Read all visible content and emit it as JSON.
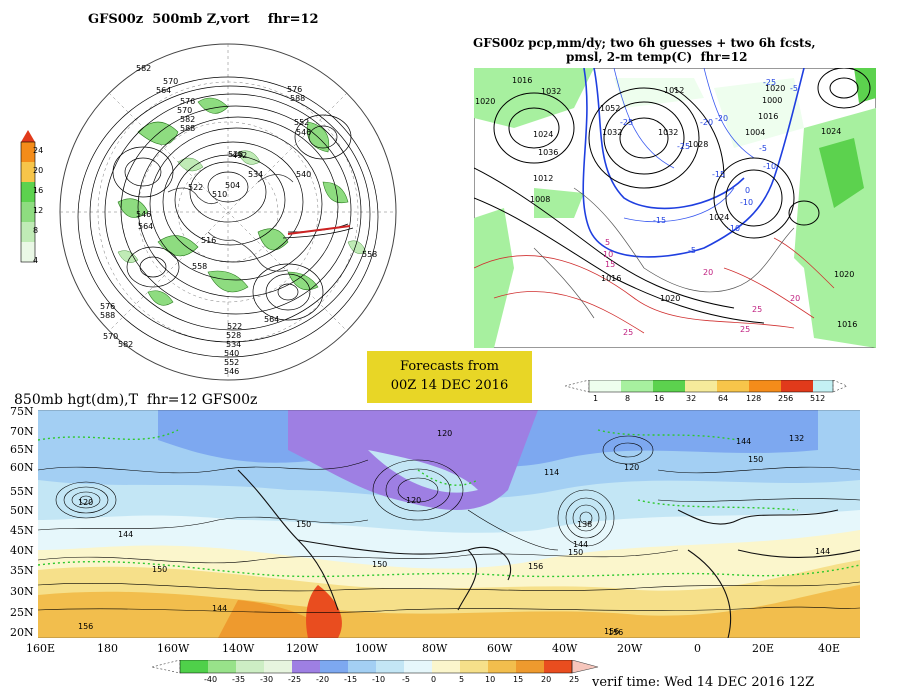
{
  "panel_500mb": {
    "title": "GFS00z  500mb Z,vort    fhr=12",
    "colorbar_ticks": [
      "4",
      "8",
      "12",
      "16",
      "20",
      "24"
    ],
    "contour_labels": [
      "582",
      "570",
      "564",
      "576",
      "588",
      "552",
      "546",
      "540",
      "528",
      "534",
      "522",
      "510",
      "504",
      "516",
      "492",
      "558",
      "546",
      "564",
      "576",
      "588",
      "570",
      "582",
      "522",
      "528",
      "534",
      "540",
      "552",
      "546",
      "558",
      "564",
      "570",
      "576",
      "582",
      "588"
    ]
  },
  "panel_precip": {
    "title_line1": "GFS00z pcp,mm/dy; two 6h guesses + two 6h fcsts,",
    "title_line2": "pmsl, 2-m temp(C)  fhr=12",
    "isobar_labels": [
      "1016",
      "1020",
      "1032",
      "1024",
      "1052",
      "1012",
      "1032",
      "1036",
      "1008",
      "1024",
      "1032",
      "1028",
      "1020",
      "1016",
      "1000",
      "1004",
      "1012",
      "1024",
      "1020",
      "1016",
      "1020",
      "1016"
    ],
    "temp_labels": [
      "-25",
      "-20",
      "-15",
      "-10",
      "-5",
      "0",
      "-25",
      "-15",
      "-10",
      "-5",
      "-20",
      "-25",
      "-10",
      "-5",
      "5",
      "10",
      "15",
      "20",
      "25",
      "20",
      "25",
      "25"
    ],
    "precip_colorbar_ticks": [
      "1",
      "8",
      "16",
      "32",
      "64",
      "128",
      "256",
      "512"
    ],
    "precip_colors": [
      "#eefeee",
      "#a7f09f",
      "#5cd24e",
      "#f6eb9b",
      "#f7c54a",
      "#f48c1a",
      "#e13a1b",
      "#c4f1f4"
    ]
  },
  "forecast_info": {
    "line1": "Forecasts from",
    "line2": "00Z 14 DEC 2016"
  },
  "panel_850mb": {
    "title": "850mb hgt(dm),T  fhr=12 GFS00z",
    "lat_labels": [
      "75N",
      "70N",
      "65N",
      "60N",
      "55N",
      "50N",
      "45N",
      "40N",
      "35N",
      "30N",
      "25N",
      "20N"
    ],
    "lon_labels": [
      "160E",
      "180",
      "160W",
      "140W",
      "120W",
      "100W",
      "80W",
      "60W",
      "40W",
      "20W",
      "0",
      "20E",
      "40E"
    ],
    "height_labels": [
      "120",
      "144",
      "150",
      "150",
      "144",
      "120",
      "114",
      "120",
      "132",
      "150",
      "156",
      "144",
      "150",
      "144",
      "156",
      "156",
      "138",
      "144",
      "150",
      "120",
      "156"
    ],
    "colorbar_ticks": [
      "-40",
      "-35",
      "-30",
      "-25",
      "-20",
      "-15",
      "-10",
      "-5",
      "0",
      "5",
      "10",
      "15",
      "20",
      "25"
    ],
    "colorbar_colors": [
      "#4fd04a",
      "#98e28a",
      "#cdeec4",
      "#e7f5df",
      "#9e7fe3",
      "#7da8f0",
      "#a3cff3",
      "#c3e6f5",
      "#e6f7fb",
      "#fbf6cc",
      "#f6e08a",
      "#f2be4d",
      "#ee9a2e",
      "#e94d1f"
    ],
    "verif_time": "verif time: Wed 14 DEC 2016 12Z"
  }
}
